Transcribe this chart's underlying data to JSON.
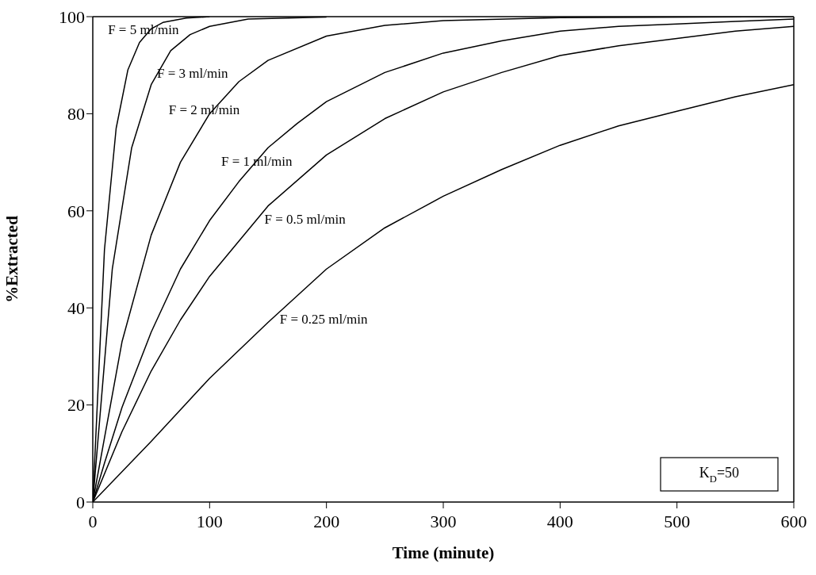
{
  "chart_data": {
    "type": "line",
    "xlabel": "Time (minute)",
    "ylabel": "%Extracted",
    "xlim": [
      0,
      600
    ],
    "xticks": [
      0,
      100,
      200,
      300,
      400,
      500,
      600
    ],
    "ylim": [
      0,
      100
    ],
    "yticks": [
      0,
      20,
      40,
      60,
      80,
      100
    ],
    "grid": false,
    "marker": "none",
    "line_style": "solid",
    "series": [
      {
        "name": "F = 5 ml/min",
        "color": "#000000",
        "x": [
          0,
          10,
          20,
          30,
          40,
          50,
          60,
          80,
          100
        ],
        "values": [
          0,
          52,
          77,
          89,
          94.7,
          97.5,
          98.8,
          99.7,
          100
        ]
      },
      {
        "name": "F = 3 ml/min",
        "color": "#000000",
        "x": [
          0,
          16.7,
          33.3,
          50,
          66.7,
          83.3,
          100,
          133,
          200
        ],
        "values": [
          0,
          48,
          73,
          86,
          93,
          96.3,
          98,
          99.5,
          99.9
        ]
      },
      {
        "name": "F = 2 ml/min",
        "color": "#000000",
        "x": [
          0,
          25,
          50,
          75,
          100,
          125,
          150,
          200,
          250,
          300,
          400,
          600
        ],
        "values": [
          0,
          33,
          55,
          70,
          80,
          86.6,
          91,
          96,
          98.2,
          99.2,
          99.8,
          100
        ]
      },
      {
        "name": "F = 1 ml/min",
        "color": "#000000",
        "x": [
          0,
          10,
          25,
          50,
          75,
          100,
          125,
          150,
          175,
          200,
          250,
          300,
          350,
          400,
          450,
          500,
          550,
          600
        ],
        "values": [
          0,
          8,
          19.5,
          35,
          48,
          58,
          66,
          73,
          78,
          82.5,
          88.5,
          92.5,
          95,
          97,
          98,
          98.5,
          99,
          99.5
        ]
      },
      {
        "name": "F = 0.5 ml/min",
        "color": "#000000",
        "x": [
          0,
          25,
          50,
          75,
          100,
          150,
          200,
          250,
          300,
          350,
          400,
          450,
          500,
          550,
          600
        ],
        "values": [
          0,
          14.5,
          27,
          37.5,
          46.5,
          61,
          71.5,
          79,
          84.5,
          88.5,
          92,
          94,
          95.5,
          97,
          98
        ]
      },
      {
        "name": "F = 0.25 ml/min",
        "color": "#000000",
        "x": [
          0,
          50,
          100,
          150,
          200,
          250,
          300,
          350,
          400,
          450,
          500,
          550,
          600
        ],
        "values": [
          0,
          12.5,
          25.5,
          37,
          48,
          56.5,
          63,
          68.5,
          73.5,
          77.5,
          80.5,
          83.5,
          86
        ]
      }
    ],
    "annotations": [
      "K$_{D}$=50"
    ]
  }
}
